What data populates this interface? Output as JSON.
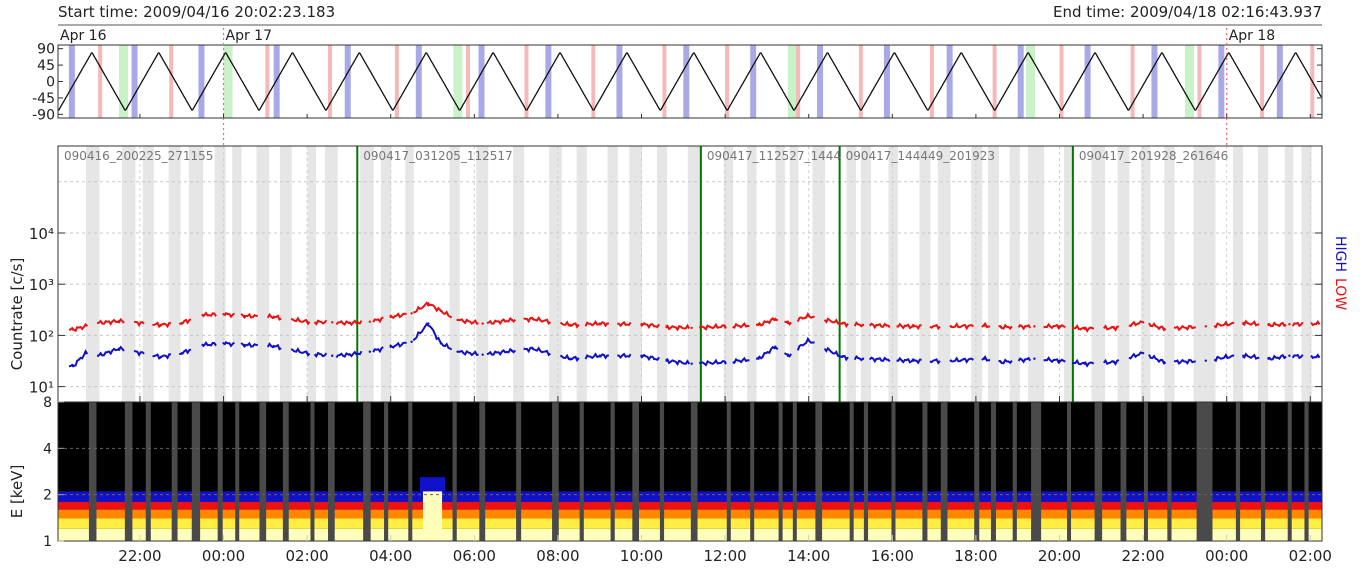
{
  "header": {
    "start_time": "Start time: 2009/04/16 20:02:23.183",
    "end_time": "End time: 2009/04/18 02:16:43.937"
  },
  "colors": {
    "low_band": "#ee1111",
    "high_band": "#1111cc",
    "file_boundary": "#007700",
    "day_marker": "#ff6666",
    "gap_shade": "#e6e6e6",
    "spectrogram_bg": "#000000",
    "spectrogram_gap": "#4a4a4a"
  },
  "chart_data": [
    {
      "type": "line",
      "panel": "attitude",
      "x_unit": "hours since 2009-04-16 00:00",
      "xlim": [
        20.04,
        50.28
      ],
      "ylim": [
        -100,
        100
      ],
      "yticks": [
        90,
        45,
        0,
        -45,
        -90
      ],
      "ytick_labels": [
        "90",
        "45",
        "0",
        "-45",
        "-90"
      ],
      "day_labels": [
        {
          "label": "Apr 16",
          "x": 20.04
        },
        {
          "label": "Apr 17",
          "x": 24.0
        },
        {
          "label": "Apr 18",
          "x": 48.0
        }
      ],
      "wave_period_h": 1.6,
      "wave_first_peak_h": 20.85,
      "wave_amplitude": 80,
      "green_bands": [
        21.5,
        24.0,
        29.5,
        37.5,
        43.2,
        47.0
      ],
      "red_bands": [
        21.0,
        22.7,
        25.0,
        26.5,
        28.1,
        29.8,
        31.2,
        32.8,
        34.5,
        36.0,
        37.7,
        39.2,
        40.9,
        42.4,
        44.0,
        45.7,
        47.3,
        48.8,
        50.0
      ],
      "blue_bands": [
        20.3,
        21.8,
        23.4,
        25.2,
        26.9,
        28.6,
        30.1,
        31.7,
        33.4,
        35.0,
        36.6,
        38.2,
        39.8,
        41.3,
        43.0,
        44.6,
        46.2,
        47.8,
        49.2
      ]
    },
    {
      "type": "scatter",
      "panel": "countrate",
      "ylabel": "Countrate [c/s]",
      "yscale": "log",
      "ylim": [
        5,
        500000
      ],
      "yticks": [
        10,
        100,
        1000,
        10000
      ],
      "ytick_labels": [
        "10¹",
        "10²",
        "10³",
        "10⁴"
      ],
      "right_labels": [
        "HIGH",
        "LOW"
      ],
      "file_labels": [
        {
          "text": "090416_200225_271155",
          "x": 20.04
        },
        {
          "text": "090417_031205_112517",
          "x": 27.2
        },
        {
          "text": "090417_112527_1444",
          "x": 35.42
        },
        {
          "text": "090417_144449_201923",
          "x": 38.74
        },
        {
          "text": "090417_201928_261646",
          "x": 44.32
        }
      ],
      "file_boundaries": [
        27.2,
        35.42,
        38.74,
        44.32
      ],
      "day_markers": [
        24.0,
        48.0
      ],
      "series": [
        {
          "name": "LOW",
          "x": [
            20.4,
            21.0,
            21.5,
            22.5,
            23.0,
            23.5,
            24.0,
            24.5,
            25.2,
            26.0,
            26.6,
            27.0,
            27.5,
            28.0,
            28.5,
            28.9,
            29.2,
            29.6,
            30.2,
            30.9,
            31.4,
            32.3,
            33.0,
            34.0,
            34.6,
            35.2,
            36.0,
            36.8,
            37.2,
            37.5,
            38.0,
            38.8,
            39.3,
            40.5,
            41.4,
            42.2,
            42.6,
            43.4,
            44.0,
            44.6,
            45.3,
            46.0,
            46.5,
            47.5,
            48.0,
            48.4,
            49.0,
            49.5,
            50.2
          ],
          "y": [
            130,
            175,
            190,
            160,
            175,
            250,
            260,
            240,
            230,
            185,
            180,
            175,
            185,
            230,
            270,
            420,
            300,
            200,
            170,
            200,
            210,
            160,
            170,
            165,
            145,
            140,
            150,
            160,
            210,
            175,
            240,
            170,
            160,
            150,
            150,
            155,
            145,
            150,
            150,
            135,
            140,
            180,
            135,
            150,
            165,
            175,
            160,
            165,
            170
          ]
        },
        {
          "name": "HIGH",
          "x": [
            20.4,
            20.7,
            21.0,
            21.5,
            22.5,
            23.0,
            23.5,
            24.0,
            24.5,
            25.2,
            26.0,
            26.6,
            27.0,
            27.5,
            28.0,
            28.5,
            28.9,
            29.2,
            29.6,
            30.2,
            30.9,
            31.4,
            32.3,
            33.0,
            34.0,
            34.6,
            35.2,
            36.0,
            36.8,
            37.2,
            37.5,
            38.0,
            38.8,
            39.3,
            40.5,
            41.4,
            42.2,
            42.6,
            43.4,
            44.0,
            44.6,
            45.3,
            46.0,
            46.5,
            47.5,
            48.0,
            48.4,
            49.0,
            49.5,
            50.2
          ],
          "y": [
            25,
            45,
            40,
            55,
            38,
            45,
            65,
            70,
            65,
            62,
            45,
            40,
            42,
            48,
            60,
            75,
            170,
            70,
            48,
            42,
            50,
            55,
            35,
            40,
            40,
            32,
            28,
            30,
            35,
            60,
            40,
            80,
            38,
            35,
            32,
            32,
            35,
            30,
            35,
            32,
            28,
            30,
            45,
            30,
            32,
            38,
            40,
            35,
            40,
            38
          ]
        }
      ]
    },
    {
      "type": "heatmap",
      "panel": "spectrogram",
      "ylabel": "E [keV]",
      "yscale": "log",
      "ylim": [
        1,
        8
      ],
      "yticks": [
        1,
        2,
        4,
        8
      ],
      "ytick_labels": [
        "1",
        "2",
        "4",
        "8"
      ],
      "xticks": [
        22,
        24,
        26,
        28,
        30,
        32,
        34,
        36,
        38,
        40,
        42,
        44,
        46,
        48,
        50
      ],
      "xtick_labels": [
        "22:00",
        "00:00",
        "02:00",
        "04:00",
        "06:00",
        "08:00",
        "10:00",
        "12:00",
        "14:00",
        "16:00",
        "18:00",
        "20:00",
        "22:00",
        "00:00",
        "02:00"
      ],
      "colorscale": [
        "#000000",
        "#1111cc",
        "#ee1111",
        "#ff8800",
        "#ffee44",
        "#ffffbb"
      ],
      "band_edges_keV": [
        1.0,
        1.2,
        1.4,
        1.6,
        1.8,
        2.1
      ],
      "band_levels": [
        5,
        4,
        3,
        2,
        1
      ],
      "flare_window_h": [
        28.7,
        29.3
      ],
      "data_gaps_h": [
        [
          20.78,
          20.96
        ],
        [
          21.64,
          21.82
        ],
        [
          22.14,
          22.26
        ],
        [
          22.76,
          22.9
        ],
        [
          23.24,
          23.44
        ],
        [
          23.86,
          23.98
        ],
        [
          24.28,
          24.36
        ],
        [
          24.86,
          25.02
        ],
        [
          25.42,
          25.56
        ],
        [
          26.08,
          26.14
        ],
        [
          26.5,
          26.66
        ],
        [
          27.34,
          27.52
        ],
        [
          27.84,
          27.94
        ],
        [
          28.42,
          28.48
        ],
        [
          29.48,
          29.58
        ],
        [
          30.12,
          30.26
        ],
        [
          31.0,
          31.12
        ],
        [
          31.86,
          32.02
        ],
        [
          32.52,
          32.62
        ],
        [
          33.26,
          33.36
        ],
        [
          33.78,
          33.94
        ],
        [
          34.44,
          34.54
        ],
        [
          35.18,
          35.34
        ],
        [
          36.04,
          36.12
        ],
        [
          36.6,
          36.68
        ],
        [
          37.28,
          37.36
        ],
        [
          37.62,
          37.68
        ],
        [
          38.16,
          38.32
        ],
        [
          38.98,
          39.06
        ],
        [
          39.32,
          39.42
        ],
        [
          39.98,
          40.06
        ],
        [
          40.72,
          40.84
        ],
        [
          41.16,
          41.32
        ],
        [
          41.96,
          42.08
        ],
        [
          42.36,
          42.48
        ],
        [
          42.88,
          42.98
        ],
        [
          43.32,
          43.56
        ],
        [
          44.18,
          44.24
        ],
        [
          44.84,
          45.02
        ],
        [
          45.46,
          45.6
        ],
        [
          46.02,
          46.1
        ],
        [
          46.58,
          46.68
        ],
        [
          47.28,
          47.66
        ],
        [
          48.22,
          48.32
        ],
        [
          48.82,
          48.92
        ],
        [
          49.46,
          49.52
        ],
        [
          49.86,
          49.96
        ]
      ]
    }
  ]
}
